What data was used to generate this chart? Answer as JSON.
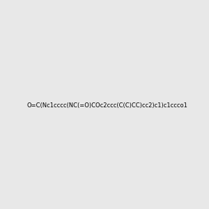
{
  "smiles": "O=C(Nc1cccc(NC(=O)COc2ccc(C(C)CC)cc2)c1)c1ccco1",
  "title": "",
  "bg_color": "#e8e8e8",
  "figsize": [
    3.0,
    3.0
  ],
  "dpi": 100
}
